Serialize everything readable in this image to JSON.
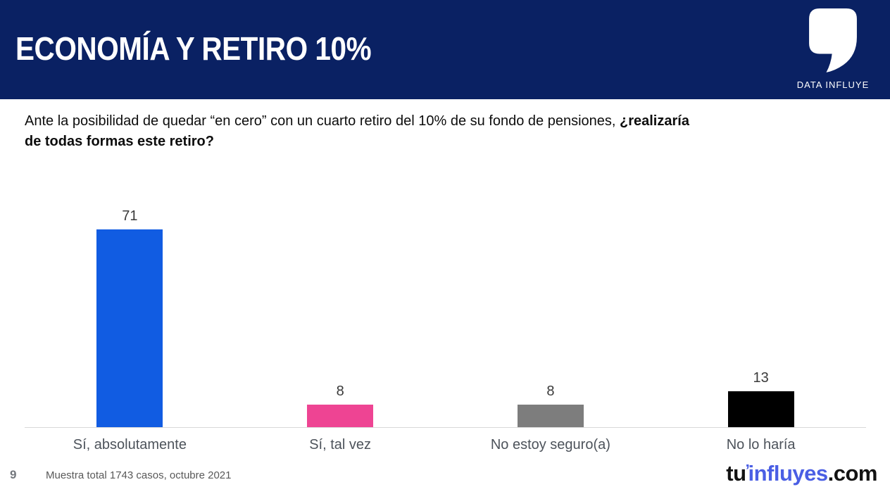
{
  "header": {
    "title": "ECONOMÍA Y RETIRO 10%",
    "brand": "DATA INFLUYE"
  },
  "question": {
    "line1_normal": "Ante la posibilidad de quedar “en cero” con un cuarto retiro del 10% de su fondo de pensiones, ",
    "line1_bold": "¿realizaría",
    "line2_bold": "de todas formas este retiro?"
  },
  "chart_data": {
    "type": "bar",
    "categories": [
      "Sí, absolutamente",
      "Sí, tal vez",
      "No estoy seguro(a)",
      "No lo haría"
    ],
    "values": [
      71,
      8,
      8,
      13
    ],
    "value_labels": [
      "71",
      "8",
      "8",
      "13"
    ],
    "bar_colors": [
      "#115ce2",
      "#ee4493",
      "#7d7d7d",
      "#000000"
    ],
    "title": "",
    "xlabel": "",
    "ylabel": "",
    "ylim": [
      0,
      75
    ],
    "grid": false,
    "legend": false,
    "data_labels_position": "above-bar"
  },
  "footer": {
    "page_number": "9",
    "note": "Muestra total 1743 casos, octubre 2021",
    "logo": {
      "tu": "tu",
      "mark": "’",
      "influyes": "influyes",
      "com": ".com"
    }
  },
  "colors": {
    "header_bg": "#0a2163",
    "accent_blue": "#115ce2",
    "pink": "#ee4493",
    "gray": "#7d7d7d",
    "black": "#000000",
    "logo_blue": "#4a5ee4",
    "baseline": "#d9d9d9"
  }
}
